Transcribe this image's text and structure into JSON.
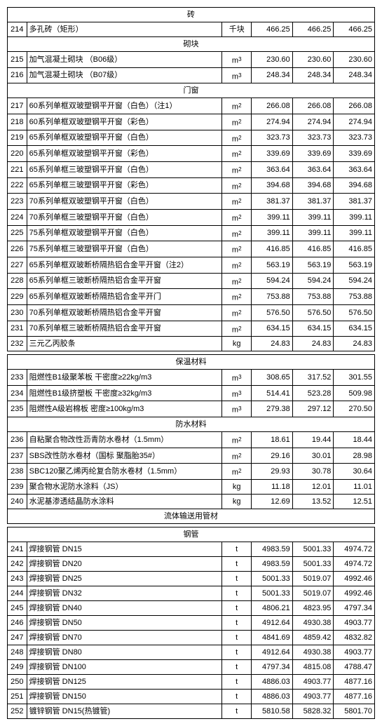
{
  "sections": [
    {
      "type": "header",
      "label": "砖"
    },
    {
      "type": "row",
      "num": "214",
      "desc": "多孔砖（矩形）",
      "unit": "千块",
      "v1": "466.25",
      "v2": "466.25",
      "v3": "466.25"
    },
    {
      "type": "header",
      "label": "砌块"
    },
    {
      "type": "row",
      "num": "215",
      "desc": "加气混凝土砌块 （B06级）",
      "unit": "m3",
      "v1": "230.60",
      "v2": "230.60",
      "v3": "230.60"
    },
    {
      "type": "row",
      "num": "216",
      "desc": "加气混凝土砌块 （B07级）",
      "unit": "m3",
      "v1": "248.34",
      "v2": "248.34",
      "v3": "248.34"
    },
    {
      "type": "header",
      "label": "门窗"
    },
    {
      "type": "row",
      "num": "217",
      "desc": "60系列单框双玻塑钢平开窗（白色）（注1）",
      "unit": "m2",
      "v1": "266.08",
      "v2": "266.08",
      "v3": "266.08"
    },
    {
      "type": "row",
      "num": "218",
      "desc": "60系列单框双玻塑钢平开窗（彩色）",
      "unit": "m2",
      "v1": "274.94",
      "v2": "274.94",
      "v3": "274.94"
    },
    {
      "type": "row",
      "num": "219",
      "desc": "65系列单框双玻塑钢平开窗（白色）",
      "unit": "m2",
      "v1": "323.73",
      "v2": "323.73",
      "v3": "323.73"
    },
    {
      "type": "row",
      "num": "220",
      "desc": "65系列单框双玻塑钢平开窗（彩色）",
      "unit": "m2",
      "v1": "339.69",
      "v2": "339.69",
      "v3": "339.69"
    },
    {
      "type": "row",
      "num": "221",
      "desc": "65系列单框三玻塑钢平开窗（白色）",
      "unit": "m2",
      "v1": "363.64",
      "v2": "363.64",
      "v3": "363.64"
    },
    {
      "type": "row",
      "num": "222",
      "desc": "65系列单框三玻塑钢平开窗（彩色）",
      "unit": "m2",
      "v1": "394.68",
      "v2": "394.68",
      "v3": "394.68"
    },
    {
      "type": "row",
      "num": "223",
      "desc": "70系列单框双玻塑钢平开窗（白色）",
      "unit": "m2",
      "v1": "381.37",
      "v2": "381.37",
      "v3": "381.37"
    },
    {
      "type": "row",
      "num": "224",
      "desc": "70系列单框三玻塑钢平开窗（白色）",
      "unit": "m2",
      "v1": "399.11",
      "v2": "399.11",
      "v3": "399.11"
    },
    {
      "type": "row",
      "num": "225",
      "desc": "75系列单框双玻塑钢平开窗（白色）",
      "unit": "m2",
      "v1": "399.11",
      "v2": "399.11",
      "v3": "399.11"
    },
    {
      "type": "row",
      "num": "226",
      "desc": "75系列单框三玻塑钢平开窗（白色）",
      "unit": "m2",
      "v1": "416.85",
      "v2": "416.85",
      "v3": "416.85"
    },
    {
      "type": "row",
      "num": "227",
      "desc": "65系列单框双玻断桥隔热铝合金平开窗（注2）",
      "unit": "m2",
      "v1": "563.19",
      "v2": "563.19",
      "v3": "563.19"
    },
    {
      "type": "row",
      "num": "228",
      "desc": "65系列单框三玻断桥隔热铝合金平开窗",
      "unit": "m2",
      "v1": "594.24",
      "v2": "594.24",
      "v3": "594.24"
    },
    {
      "type": "row",
      "num": "229",
      "desc": "65系列单框双玻断桥隔热铝合金平开门",
      "unit": "m2",
      "v1": "753.88",
      "v2": "753.88",
      "v3": "753.88"
    },
    {
      "type": "row",
      "num": "230",
      "desc": "70系列单框双玻断桥隔热铝合金平开窗",
      "unit": "m2",
      "v1": "576.50",
      "v2": "576.50",
      "v3": "576.50"
    },
    {
      "type": "row",
      "num": "231",
      "desc": "70系列单框三玻断桥隔热铝合金平开窗",
      "unit": "m2",
      "v1": "634.15",
      "v2": "634.15",
      "v3": "634.15"
    },
    {
      "type": "row",
      "num": "232",
      "desc": "三元乙丙胶条",
      "unit": "kg",
      "v1": "24.83",
      "v2": "24.83",
      "v3": "24.83"
    },
    {
      "type": "spacer"
    },
    {
      "type": "header",
      "label": "保温材料"
    },
    {
      "type": "row",
      "num": "233",
      "desc": "阻燃性B1级聚苯板 干密度≥22kg/m3",
      "unit": "m3",
      "v1": "308.65",
      "v2": "317.52",
      "v3": "301.55"
    },
    {
      "type": "row",
      "num": "234",
      "desc": "阻燃性B1级挤塑板 干密度≥32kg/m3",
      "unit": "m3",
      "v1": "514.41",
      "v2": "523.28",
      "v3": "509.98"
    },
    {
      "type": "row",
      "num": "235",
      "desc": "阻燃性A级岩棉板 密度≥100kg/m3",
      "unit": "m3",
      "v1": "279.38",
      "v2": "297.12",
      "v3": "270.50"
    },
    {
      "type": "header",
      "label": "防水材料"
    },
    {
      "type": "row",
      "num": "236",
      "desc": "自粘聚合物改性沥青防水卷材（1.5mm）",
      "unit": "m2",
      "v1": "18.61",
      "v2": "19.44",
      "v3": "18.44"
    },
    {
      "type": "row",
      "num": "237",
      "desc": "SBS改性防水卷材（国标 聚脂胎35#）",
      "unit": "m2",
      "v1": "29.16",
      "v2": "30.01",
      "v3": "28.98"
    },
    {
      "type": "row",
      "num": "238",
      "desc": "SBC120聚乙烯丙纶复合防水卷材（1.5mm）",
      "unit": "m2",
      "v1": "29.93",
      "v2": "30.78",
      "v3": "30.64"
    },
    {
      "type": "row",
      "num": "239",
      "desc": "聚合物水泥防水涂料（JS）",
      "unit": "kg",
      "v1": "11.18",
      "v2": "12.01",
      "v3": "11.01"
    },
    {
      "type": "row",
      "num": "240",
      "desc": "水泥基渗透结晶防水涂料",
      "unit": "kg",
      "v1": "12.69",
      "v2": "13.52",
      "v3": "12.51"
    },
    {
      "type": "header",
      "label": "流体输送用管材"
    },
    {
      "type": "spacer"
    },
    {
      "type": "header",
      "label": "钢管"
    },
    {
      "type": "row",
      "num": "241",
      "desc": "焊接钢管 DN15",
      "unit": "t",
      "v1": "4983.59",
      "v2": "5001.33",
      "v3": "4974.72"
    },
    {
      "type": "row",
      "num": "242",
      "desc": "焊接钢管 DN20",
      "unit": "t",
      "v1": "4983.59",
      "v2": "5001.33",
      "v3": "4974.72"
    },
    {
      "type": "row",
      "num": "243",
      "desc": "焊接钢管 DN25",
      "unit": "t",
      "v1": "5001.33",
      "v2": "5019.07",
      "v3": "4992.46"
    },
    {
      "type": "row",
      "num": "244",
      "desc": "焊接钢管 DN32",
      "unit": "t",
      "v1": "5001.33",
      "v2": "5019.07",
      "v3": "4992.46"
    },
    {
      "type": "row",
      "num": "245",
      "desc": "焊接钢管 DN40",
      "unit": "t",
      "v1": "4806.21",
      "v2": "4823.95",
      "v3": "4797.34"
    },
    {
      "type": "row",
      "num": "246",
      "desc": "焊接钢管 DN50",
      "unit": "t",
      "v1": "4912.64",
      "v2": "4930.38",
      "v3": "4903.77"
    },
    {
      "type": "row",
      "num": "247",
      "desc": "焊接钢管 DN70",
      "unit": "t",
      "v1": "4841.69",
      "v2": "4859.42",
      "v3": "4832.82"
    },
    {
      "type": "row",
      "num": "248",
      "desc": "焊接钢管 DN80",
      "unit": "t",
      "v1": "4912.64",
      "v2": "4930.38",
      "v3": "4903.77"
    },
    {
      "type": "row",
      "num": "249",
      "desc": "焊接钢管 DN100",
      "unit": "t",
      "v1": "4797.34",
      "v2": "4815.08",
      "v3": "4788.47"
    },
    {
      "type": "row",
      "num": "250",
      "desc": "焊接钢管 DN125",
      "unit": "t",
      "v1": "4886.03",
      "v2": "4903.77",
      "v3": "4877.16"
    },
    {
      "type": "row",
      "num": "251",
      "desc": "焊接钢管 DN150",
      "unit": "t",
      "v1": "4886.03",
      "v2": "4903.77",
      "v3": "4877.16"
    },
    {
      "type": "row",
      "num": "252",
      "desc": "镀锌钢管 DN15(热镀管)",
      "unit": "t",
      "v1": "5810.58",
      "v2": "5828.32",
      "v3": "5801.70"
    }
  ]
}
